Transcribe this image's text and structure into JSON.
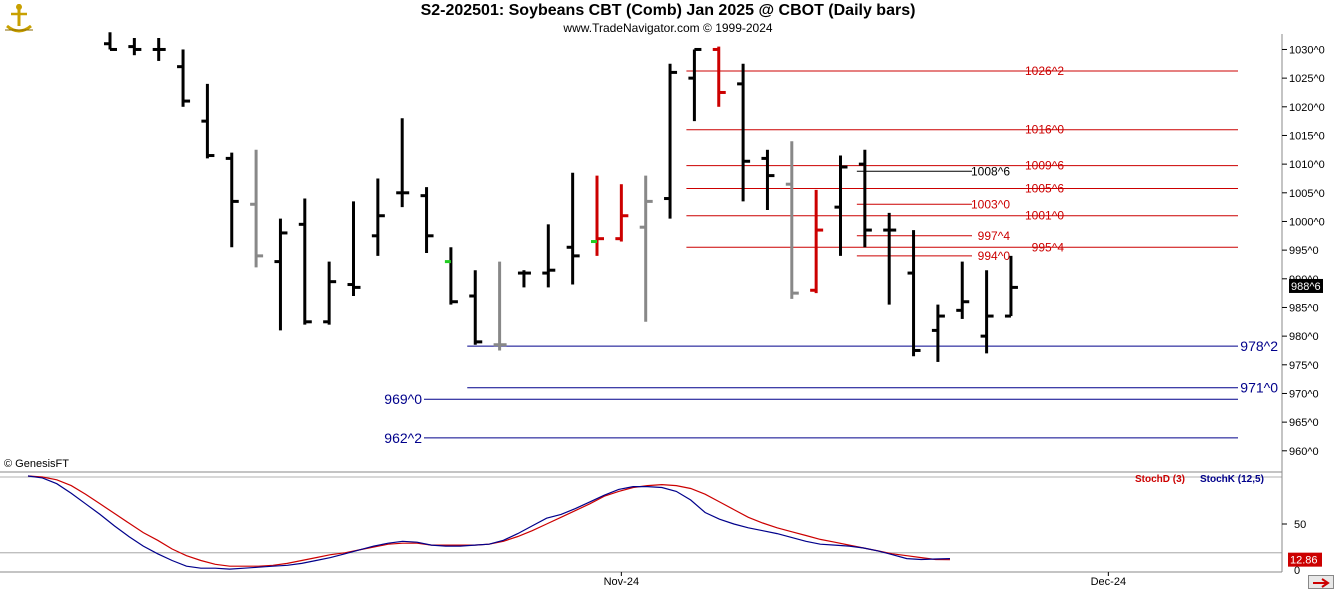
{
  "header": {
    "title": "S2-202501:  Soybeans CBT (Comb) Jan 2025 @ CBOT  (Daily bars)",
    "subtitle": "www.TradeNavigator.com © 1999-2024"
  },
  "copyright": "© GenesisFT",
  "colors": {
    "bar_default": "#000000",
    "bar_gray": "#888888",
    "bar_red": "#e00000",
    "bar_green": "#22cc22",
    "level_red": "#cc0000",
    "level_blue": "#00008b",
    "stoch_d": "#cc0000",
    "stoch_k": "#0000cc"
  },
  "chart_data": [
    {
      "type": "ohlc",
      "y_axis": {
        "min": 957,
        "max": 1032,
        "ticks": [
          960,
          965,
          970,
          975,
          980,
          985,
          990,
          995,
          1000,
          1005,
          1010,
          1015,
          1020,
          1025,
          1030
        ],
        "tick_labels": [
          "960^0",
          "965^0",
          "970^0",
          "975^0",
          "980^0",
          "985^0",
          "990^0",
          "995^0",
          "1000^0",
          "1005^0",
          "1010^0",
          "1015^0",
          "1020^0",
          "1025^0",
          "1030^0"
        ]
      },
      "x_axis": {
        "labels": [
          {
            "text": "Nov-24",
            "bar": 21
          },
          {
            "text": "Dec-24",
            "bar": 41
          }
        ]
      },
      "last_price_label": "988^6",
      "last_price": 988.75,
      "bars": [
        {
          "o": 1031,
          "h": 1033,
          "l": 1030,
          "c": 1030,
          "color": "black"
        },
        {
          "o": 1030.5,
          "h": 1032,
          "l": 1029,
          "c": 1030,
          "color": "black"
        },
        {
          "o": 1030,
          "h": 1032,
          "l": 1028,
          "c": 1030,
          "color": "black"
        },
        {
          "o": 1027,
          "h": 1030,
          "l": 1020,
          "c": 1021,
          "color": "black"
        },
        {
          "o": 1017.5,
          "h": 1024,
          "l": 1011,
          "c": 1011.5,
          "color": "black"
        },
        {
          "o": 1011,
          "h": 1012,
          "l": 995.5,
          "c": 1003.5,
          "color": "black"
        },
        {
          "o": 1003,
          "h": 1012.5,
          "l": 992,
          "c": 994,
          "color": "gray"
        },
        {
          "o": 993,
          "h": 1000.5,
          "l": 981,
          "c": 998,
          "color": "black"
        },
        {
          "o": 999.5,
          "h": 1004,
          "l": 982,
          "c": 982.5,
          "color": "black"
        },
        {
          "o": 982.5,
          "h": 993,
          "l": 982,
          "c": 989.5,
          "color": "black"
        },
        {
          "o": 989,
          "h": 1003.5,
          "l": 987,
          "c": 988.5,
          "color": "black"
        },
        {
          "o": 997.5,
          "h": 1007.5,
          "l": 994,
          "c": 1001,
          "color": "black"
        },
        {
          "o": 1005,
          "h": 1018,
          "l": 1002.5,
          "c": 1005,
          "color": "black"
        },
        {
          "o": 1004.5,
          "h": 1006,
          "l": 994.5,
          "c": 997.5,
          "color": "black"
        },
        {
          "o": 993,
          "h": 995.5,
          "l": 985.5,
          "c": 986,
          "color": "black"
        },
        {
          "o": 987,
          "h": 991.5,
          "l": 978.5,
          "c": 979,
          "color": "black"
        },
        {
          "o": 978.5,
          "h": 993,
          "l": 977.5,
          "c": 978.5,
          "color": "gray"
        },
        {
          "o": 991,
          "h": 991.5,
          "l": 988.5,
          "c": 991,
          "color": "black"
        },
        {
          "o": 991,
          "h": 999.5,
          "l": 988.5,
          "c": 991.5,
          "color": "black"
        },
        {
          "o": 995.5,
          "h": 1008.5,
          "l": 989,
          "c": 994,
          "color": "black"
        },
        {
          "o": 996.5,
          "h": 1008,
          "l": 994,
          "c": 997,
          "color": "red"
        },
        {
          "o": 997,
          "h": 1006.5,
          "l": 996.5,
          "c": 1001,
          "color": "red"
        },
        {
          "o": 999,
          "h": 1008,
          "l": 982.5,
          "c": 1003.5,
          "color": "gray"
        },
        {
          "o": 1004,
          "h": 1027.5,
          "l": 1000.5,
          "c": 1026,
          "color": "black"
        },
        {
          "o": 1025,
          "h": 1030,
          "l": 1017.5,
          "c": 1030,
          "color": "black"
        },
        {
          "o": 1030,
          "h": 1030.5,
          "l": 1020,
          "c": 1022.5,
          "color": "red"
        },
        {
          "o": 1024,
          "h": 1027.5,
          "l": 1003.5,
          "c": 1010.5,
          "color": "black"
        },
        {
          "o": 1011,
          "h": 1012.5,
          "l": 1002,
          "c": 1008,
          "color": "black"
        },
        {
          "o": 1006.5,
          "h": 1014,
          "l": 986.5,
          "c": 987.5,
          "color": "gray"
        },
        {
          "o": 988,
          "h": 1005.5,
          "l": 987.5,
          "c": 998.5,
          "color": "red"
        },
        {
          "o": 1002.5,
          "h": 1011.5,
          "l": 994,
          "c": 1009.5,
          "color": "black"
        },
        {
          "o": 1010,
          "h": 1012.5,
          "l": 995.5,
          "c": 998.5,
          "color": "black"
        },
        {
          "o": 998.5,
          "h": 1001.5,
          "l": 985.5,
          "c": 998.5,
          "color": "black"
        },
        {
          "o": 991,
          "h": 998.5,
          "l": 976.5,
          "c": 977.5,
          "color": "black"
        },
        {
          "o": 981,
          "h": 985.5,
          "l": 975.5,
          "c": 983.5,
          "color": "black"
        },
        {
          "o": 984.5,
          "h": 993,
          "l": 983,
          "c": 986,
          "color": "black"
        },
        {
          "o": 980,
          "h": 991.5,
          "l": 977,
          "c": 983.5,
          "color": "black"
        },
        {
          "o": 983.5,
          "h": 994,
          "l": 983.5,
          "c": 988.5,
          "color": "black"
        }
      ],
      "bar_colors_open_green": [
        14,
        20
      ],
      "levels": [
        {
          "label": "1026^2",
          "value": 1026.25,
          "color": "red",
          "from_bar": 24,
          "label_side": "right"
        },
        {
          "label": "1016^0",
          "value": 1016,
          "color": "red",
          "from_bar": 24,
          "label_side": "right"
        },
        {
          "label": "1009^6",
          "value": 1009.75,
          "color": "red",
          "from_bar": 24,
          "label_side": "right"
        },
        {
          "label": "1005^6",
          "value": 1005.75,
          "color": "red",
          "from_bar": 24,
          "label_side": "right"
        },
        {
          "label": "1001^0",
          "value": 1001,
          "color": "red",
          "from_bar": 24,
          "label_side": "right"
        },
        {
          "label": "995^4",
          "value": 995.5,
          "color": "red",
          "from_bar": 24,
          "label_side": "right"
        },
        {
          "label": "1008^6",
          "value": 1008.75,
          "color": "black",
          "from_bar": 31,
          "label_side": "inner"
        },
        {
          "label": "1003^0",
          "value": 1003,
          "color": "red",
          "from_bar": 31,
          "label_side": "inner"
        },
        {
          "label": "997^4",
          "value": 997.5,
          "color": "red",
          "from_bar": 31,
          "label_side": "inner"
        },
        {
          "label": "994^0",
          "value": 994,
          "color": "red",
          "from_bar": 31,
          "label_side": "inner"
        },
        {
          "label": "978^2",
          "value": 978.25,
          "color": "blue",
          "from_bar": 15,
          "label_side": "right"
        },
        {
          "label": "971^0",
          "value": 971,
          "color": "blue",
          "from_bar": 15,
          "label_side": "right"
        },
        {
          "label": "969^0",
          "value": 969,
          "color": "blue",
          "from_bar": 15,
          "label_side": "left"
        },
        {
          "label": "962^2",
          "value": 962.25,
          "color": "blue",
          "from_bar": 15,
          "label_side": "left"
        }
      ]
    },
    {
      "type": "line",
      "y_axis": {
        "min": 0,
        "max": 100,
        "ticks": [
          50
        ],
        "tick_labels": [
          "50"
        ]
      },
      "current_label": "12.86",
      "current_value": 12.86,
      "legend": [
        {
          "text": "StochD (3)",
          "color": "red"
        },
        {
          "text": "StochK (12,5)",
          "color": "blue"
        }
      ],
      "series": [
        {
          "name": "StochD (3)",
          "color": "red",
          "values": [
            100,
            99,
            96,
            90,
            81,
            71,
            61,
            51,
            41,
            33,
            24,
            17,
            12,
            8,
            6,
            6,
            6,
            7,
            9,
            12,
            15,
            18,
            20,
            23,
            26,
            29,
            30,
            30,
            28,
            28,
            28,
            28,
            29,
            32,
            37,
            43,
            50,
            57,
            64,
            71,
            79,
            84,
            88,
            90,
            91,
            90,
            87,
            81,
            73,
            65,
            57,
            51,
            46,
            42,
            38,
            34,
            31,
            28,
            25,
            22,
            19,
            17,
            15,
            13,
            12.86
          ]
        },
        {
          "name": "StochK (12,5)",
          "color": "blue",
          "values": [
            100,
            98,
            92,
            82,
            71,
            60,
            48,
            37,
            27,
            19,
            12,
            6,
            4,
            4,
            3,
            4,
            5,
            6,
            7,
            9,
            12,
            15,
            19,
            23,
            27,
            30,
            32,
            31,
            28,
            27,
            27,
            28,
            29,
            33,
            40,
            48,
            56,
            60,
            66,
            73,
            80,
            86,
            89,
            89,
            88,
            84,
            75,
            62,
            55,
            50,
            46,
            43,
            40,
            36,
            32,
            29,
            28,
            27,
            25,
            22,
            18,
            14,
            13,
            13.5,
            14
          ]
        }
      ]
    }
  ]
}
